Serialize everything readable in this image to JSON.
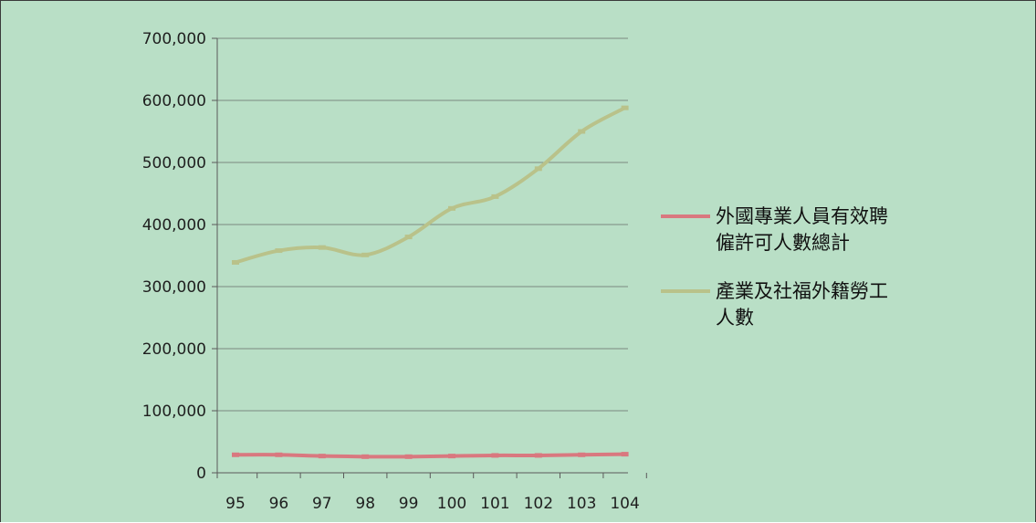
{
  "chart_data": {
    "type": "line",
    "categories": [
      "95",
      "96",
      "97",
      "98",
      "99",
      "100",
      "101",
      "102",
      "103",
      "104"
    ],
    "series": [
      {
        "name": "外國專業人員有效聘僱許可人數總計",
        "name_lines": [
          "外國專業人員有效聘",
          "僱許可人數總計"
        ],
        "color": "#d9787f",
        "values": [
          29000,
          29000,
          27000,
          26000,
          26000,
          27000,
          28000,
          28000,
          29000,
          30000
        ]
      },
      {
        "name": "產業及社福外籍勞工人數",
        "name_lines": [
          "產業及社福外籍勞工",
          "人數"
        ],
        "color": "#b9c28a",
        "values": [
          339000,
          358000,
          363000,
          351000,
          380000,
          426000,
          445000,
          490000,
          550000,
          588000
        ]
      }
    ],
    "ylim": [
      0,
      700000
    ],
    "yticks": [
      0,
      100000,
      200000,
      300000,
      400000,
      500000,
      600000,
      700000
    ],
    "ytick_labels": [
      "0",
      "100,000",
      "200,000",
      "300,000",
      "400,000",
      "500,000",
      "600,000",
      "700,000"
    ],
    "grid": true,
    "legend": "right",
    "title": "",
    "xlabel": "",
    "ylabel": ""
  }
}
